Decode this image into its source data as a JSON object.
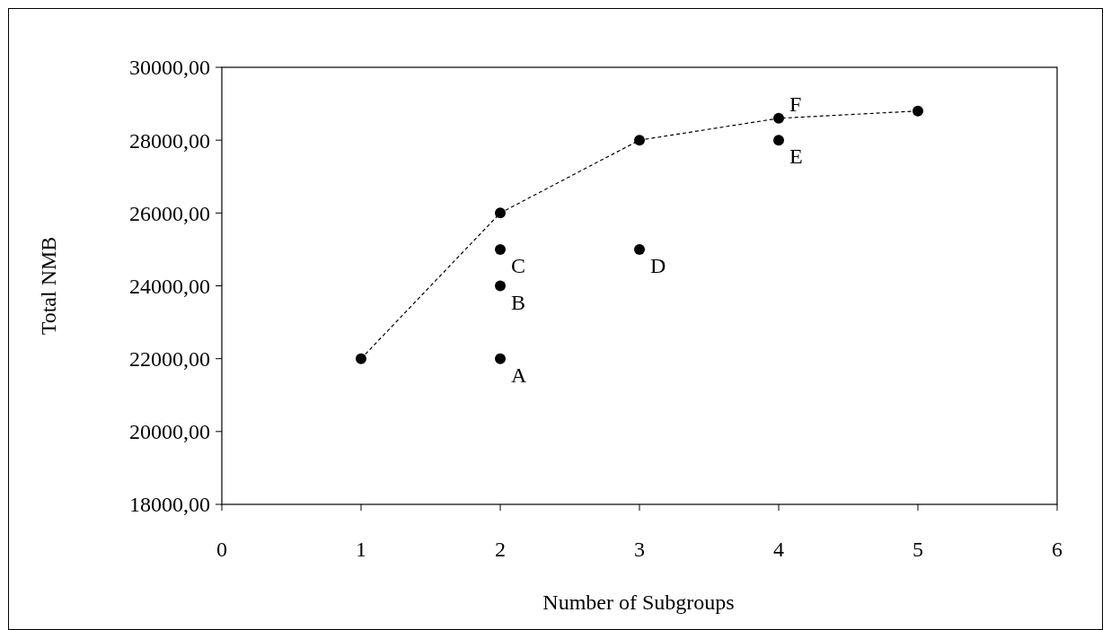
{
  "chart_data": {
    "type": "scatter",
    "xlabel": "Number of Subgroups",
    "ylabel": "Total NMB",
    "xlim": [
      0,
      6
    ],
    "xticks": [
      0,
      1,
      2,
      3,
      4,
      5,
      6
    ],
    "ylim": [
      18000,
      30000
    ],
    "yticks": [
      {
        "value": 18000,
        "label": "18000,00"
      },
      {
        "value": 20000,
        "label": "20000,00"
      },
      {
        "value": 22000,
        "label": "22000,00"
      },
      {
        "value": 24000,
        "label": "24000,00"
      },
      {
        "value": 26000,
        "label": "26000,00"
      },
      {
        "value": 28000,
        "label": "28000,00"
      },
      {
        "value": 30000,
        "label": "30000,00"
      }
    ],
    "grid": false,
    "marker": "circle",
    "series": [
      {
        "type": "line",
        "line_style": "dashed",
        "color": "#000000",
        "x": [
          1,
          2,
          3,
          4,
          5
        ],
        "values": [
          22000,
          26000,
          28000,
          28600,
          28800
        ]
      },
      {
        "color": "#000000",
        "x": [
          2,
          2,
          2,
          3,
          4
        ],
        "values": [
          22000,
          24000,
          25000,
          25000,
          28000
        ]
      }
    ],
    "annotations": [
      {
        "text": "A",
        "x": 2,
        "y": 22000
      },
      {
        "text": "B",
        "x": 2,
        "y": 24000
      },
      {
        "text": "C",
        "x": 2,
        "y": 25000
      },
      {
        "text": "D",
        "x": 3,
        "y": 25000
      },
      {
        "text": "E",
        "x": 4,
        "y": 28000
      },
      {
        "text": "F",
        "x": 4,
        "y": 28600
      }
    ]
  }
}
